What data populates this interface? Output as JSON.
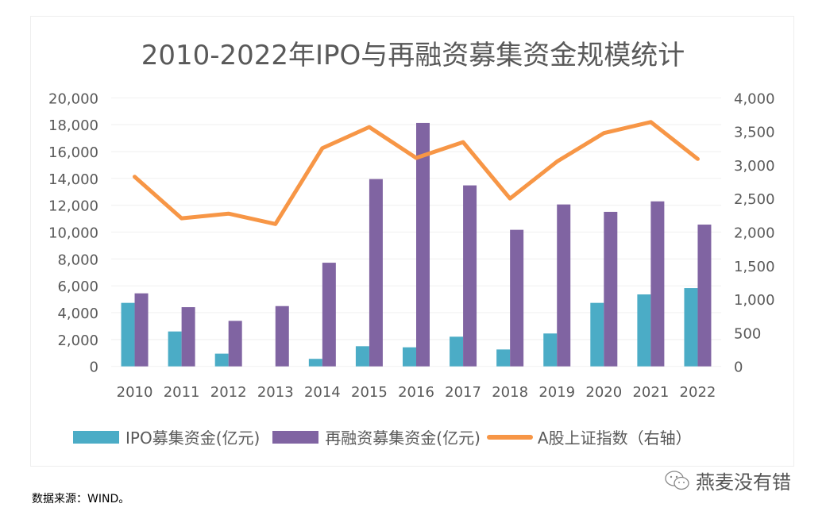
{
  "chart_data": {
    "type": "bar",
    "title": "2010-2022年IPO与再融资募集资金规模统计",
    "categories": [
      "2010",
      "2011",
      "2012",
      "2013",
      "2014",
      "2015",
      "2016",
      "2017",
      "2018",
      "2019",
      "2020",
      "2021",
      "2022"
    ],
    "series": [
      {
        "name": "IPO募集资金(亿元)",
        "type": "bar",
        "axis": "left",
        "color": "#4BACC6",
        "values": [
          4730,
          2600,
          950,
          0,
          560,
          1500,
          1420,
          2210,
          1260,
          2450,
          4730,
          5360,
          5830
        ]
      },
      {
        "name": "再融资募集资金(亿元)",
        "type": "bar",
        "axis": "left",
        "color": "#8064A2",
        "values": [
          5440,
          4410,
          3390,
          4490,
          7720,
          13950,
          18130,
          13480,
          10170,
          12060,
          11510,
          12290,
          10560
        ]
      },
      {
        "name": "A股上证指数（右轴）",
        "type": "line",
        "axis": "right",
        "color": "#F79646",
        "values": [
          2825,
          2205,
          2275,
          2120,
          3250,
          3565,
          3105,
          3340,
          2500,
          3050,
          3475,
          3640,
          3090
        ]
      }
    ],
    "left_axis": {
      "ylim": [
        0,
        20000
      ],
      "ticks": [
        "0",
        "2,000",
        "4,000",
        "6,000",
        "8,000",
        "10,000",
        "12,000",
        "14,000",
        "16,000",
        "18,000",
        "20,000"
      ]
    },
    "right_axis": {
      "ylim": [
        0,
        4000
      ],
      "ticks": [
        "0",
        "500",
        "1,000",
        "1,500",
        "2,000",
        "2,500",
        "3,000",
        "3,500",
        "4,000"
      ]
    },
    "xlabel": "",
    "ylabel": "",
    "grid": true,
    "legend_position": "bottom"
  },
  "footer": {
    "source": "数据来源：WIND。",
    "watermark": "燕麦没有错"
  }
}
